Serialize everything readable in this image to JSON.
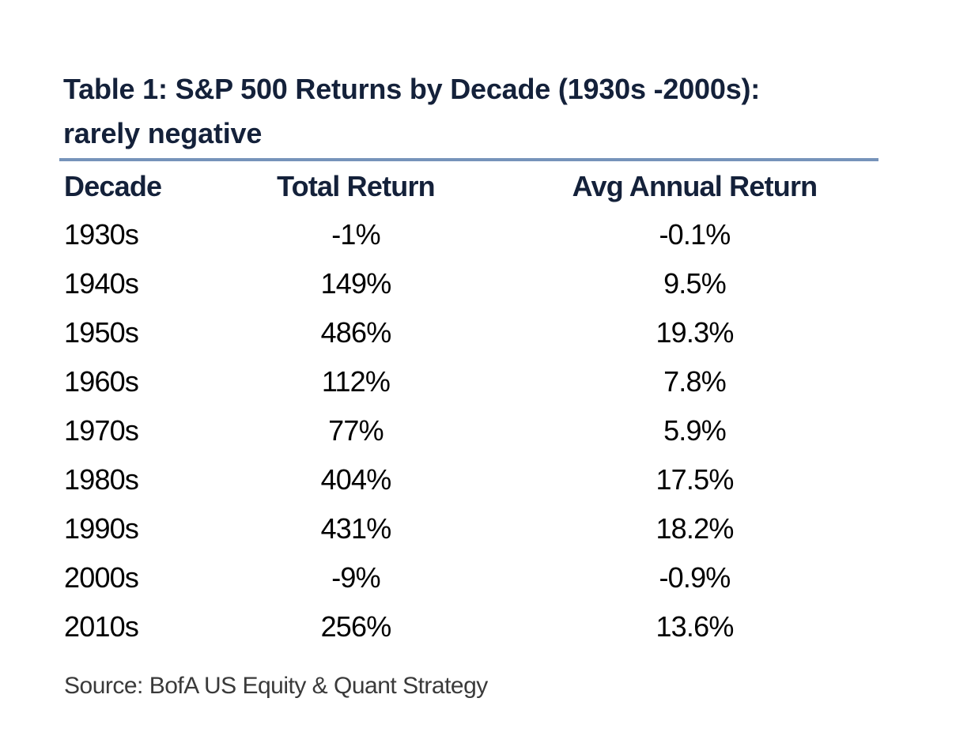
{
  "title": {
    "line1": "Table 1: S&P 500 Returns by Decade (1930s -2000s):",
    "line2": "rarely negative"
  },
  "colors": {
    "title_navy": "#14213a",
    "rule_blue": "#7693ba",
    "data_black": "#000000",
    "source_gray": "#3a3a3a",
    "background": "#ffffff"
  },
  "chart_data": {
    "type": "table",
    "title": "Table 1: S&P 500 Returns by Decade (1930s -2000s): rarely negative",
    "columns": [
      "Decade",
      "Total Return",
      "Avg Annual Return"
    ],
    "rows": [
      [
        "1930s",
        "-1%",
        "-0.1%"
      ],
      [
        "1940s",
        "149%",
        "9.5%"
      ],
      [
        "1950s",
        "486%",
        "19.3%"
      ],
      [
        "1960s",
        "112%",
        "7.8%"
      ],
      [
        "1970s",
        "77%",
        "5.9%"
      ],
      [
        "1980s",
        "404%",
        "17.5%"
      ],
      [
        "1990s",
        "431%",
        "18.2%"
      ],
      [
        "2000s",
        "-9%",
        "-0.9%"
      ],
      [
        "2010s",
        "256%",
        "13.6%"
      ]
    ],
    "source": "Source: BofA US Equity & Quant Strategy"
  }
}
